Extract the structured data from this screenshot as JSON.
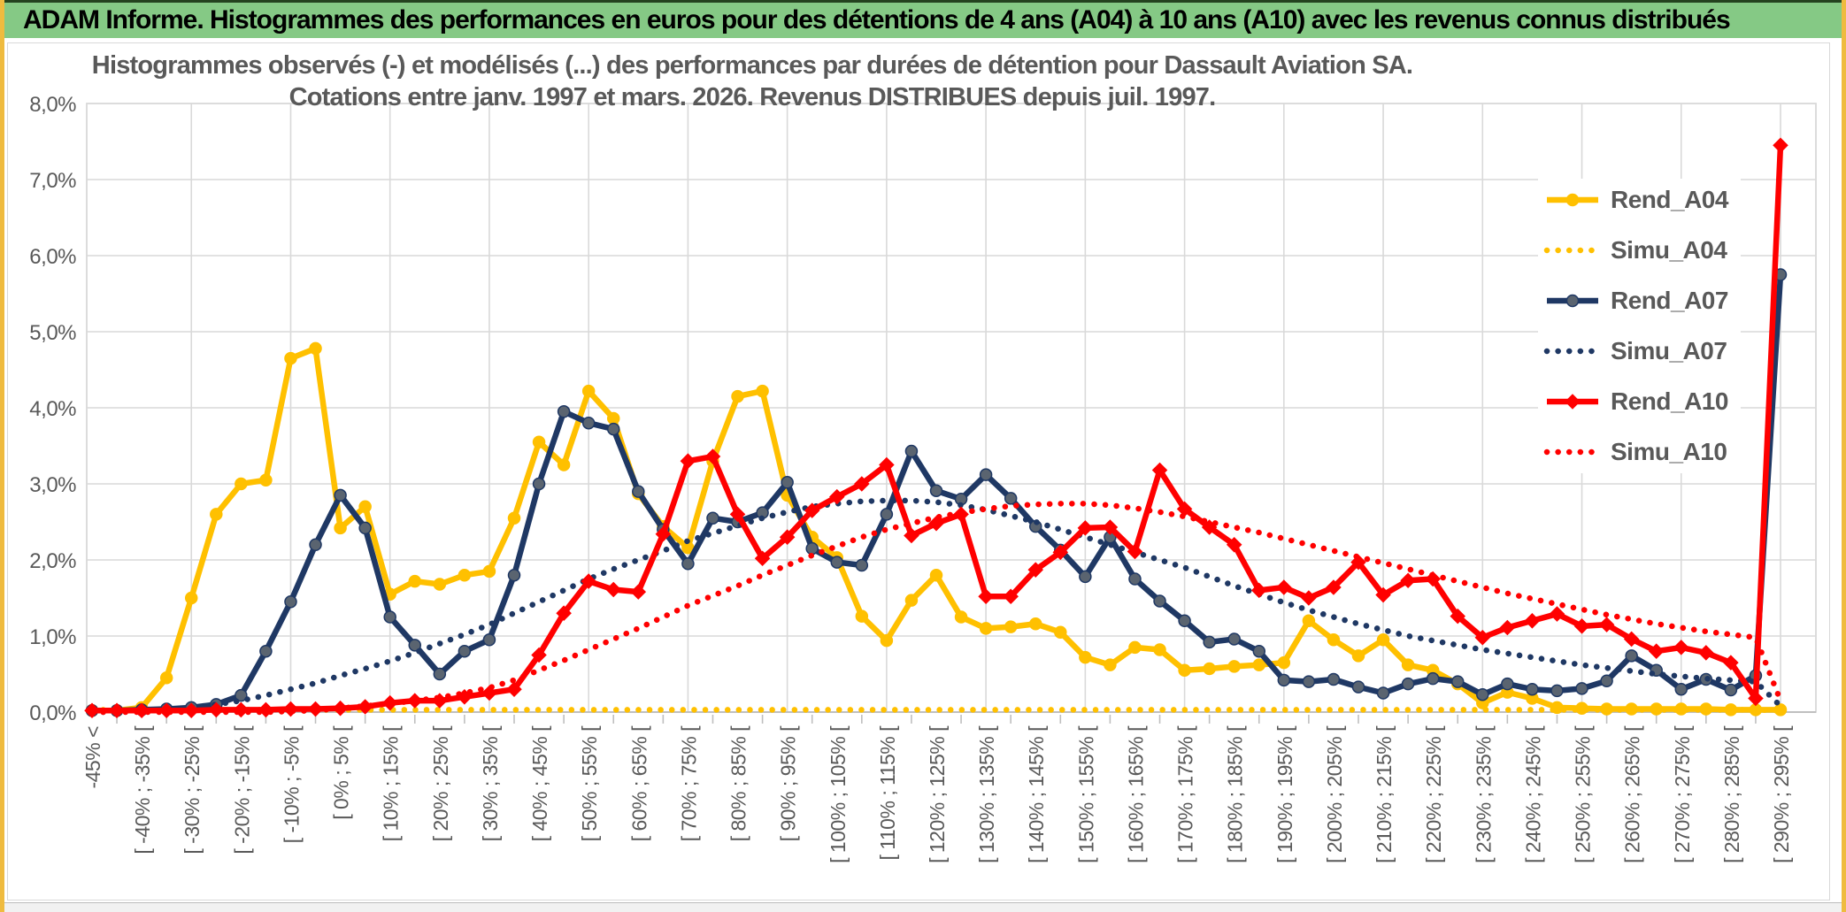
{
  "window": {
    "title": "ADAM Informe. Histogrammes des performances en euros pour des détentions de 4 ans (A04) à 10 ans (A10) avec les revenus connus distribués"
  },
  "chart": {
    "title_line1": "Histogrammes observés (-) et modélisés (...) des performances par durées de détention pour Dassault Aviation SA.",
    "title_line2": "Cotations entre janv. 1997 et mars. 2026. Revenus DISTRIBUES depuis juil. 1997."
  },
  "colors": {
    "gold": "#FFC000",
    "navy": "#1F3864",
    "navy_marker_fill": "#5A6470",
    "red": "#FF0000",
    "grid": "#D9D9D9",
    "axis": "#BFBFBF",
    "text_gray": "#595959",
    "header_green": "#85C985",
    "edge_gold": "#EFBB3F"
  },
  "chart_data": {
    "type": "line",
    "title": "Histogrammes observés (-) et modélisés (...) des performances par durées de détention pour Dassault Aviation SA.",
    "subtitle": "Cotations entre janv. 1997 et mars. 2026. Revenus DISTRIBUES depuis juil. 1997.",
    "ylim": [
      0,
      8
    ],
    "grid": true,
    "legend_position": "top-right",
    "points_per_series": 69,
    "x_label_every": 2,
    "y_labels": [
      "0,0%",
      "1,0%",
      "2,0%",
      "3,0%",
      "4,0%",
      "5,0%",
      "6,0%",
      "7,0%",
      "8,0%"
    ],
    "x_labels": [
      "-45% <",
      "[ -40% ; -35% [",
      "[ -30% ; -25% [",
      "[ -20% ; -15% [",
      "[ -10% ; -5% [",
      "[ 0% ; 5% [",
      "[ 10% ; 15% [",
      "[ 20% ; 25% [",
      "[ 30% ; 35% [",
      "[ 40% ; 45% [",
      "[ 50% ; 55% [",
      "[ 60% ; 65% [",
      "[ 70% ; 75% [",
      "[ 80% ; 85% [",
      "[ 90% ; 95% [",
      "[ 100% ; 105% [",
      "[ 110% ; 115% [",
      "[ 120% ; 125% [",
      "[ 130% ; 135% [",
      "[ 140% ; 145% [",
      "[ 150% ; 155% [",
      "[ 160% ; 165% [",
      "[ 170% ; 175% [",
      "[ 180% ; 185% [",
      "[ 190% ; 195% [",
      "[ 200% ; 205% [",
      "[ 210% ; 215% [",
      "[ 220% ; 225% [",
      "[ 230% ; 235% [",
      "[ 240% ; 245% [",
      "[ 250% ; 255% [",
      "[ 260% ; 265% [",
      "[ 270% ; 275% [",
      "[ 280% ; 285% [",
      "[ 290% ; 295% ["
    ],
    "series": [
      {
        "name": "Rend_A04",
        "color": "#FFC000",
        "style": "solid",
        "marker": "circle",
        "values": [
          0.02,
          0.02,
          0.06,
          0.45,
          1.5,
          2.6,
          3.0,
          3.05,
          4.65,
          4.78,
          2.42,
          2.7,
          1.55,
          1.72,
          1.68,
          1.8,
          1.85,
          2.55,
          3.55,
          3.25,
          4.22,
          3.86,
          2.87,
          2.44,
          2.16,
          3.3,
          4.15,
          4.22,
          2.85,
          2.3,
          2.03,
          1.26,
          0.94,
          1.47,
          1.8,
          1.25,
          1.1,
          1.12,
          1.16,
          1.05,
          0.72,
          0.62,
          0.85,
          0.82,
          0.55,
          0.57,
          0.6,
          0.62,
          0.65,
          1.2,
          0.95,
          0.74,
          0.95,
          0.62,
          0.55,
          0.37,
          0.12,
          0.26,
          0.18,
          0.06,
          0.05,
          0.04,
          0.04,
          0.04,
          0.04,
          0.04,
          0.03,
          0.03,
          0.03
        ]
      },
      {
        "name": "Simu_A04",
        "color": "#FFC000",
        "style": "dotted",
        "marker": "none",
        "values": [
          0.03,
          0.03,
          0.03,
          0.03,
          0.03,
          0.03,
          0.03,
          0.03,
          0.03,
          0.03,
          0.03,
          0.03,
          0.03,
          0.03,
          0.03,
          0.03,
          0.03,
          0.03,
          0.03,
          0.03,
          0.03,
          0.03,
          0.03,
          0.03,
          0.03,
          0.03,
          0.03,
          0.03,
          0.03,
          0.03,
          0.03,
          0.03,
          0.03,
          0.03,
          0.03,
          0.03,
          0.03,
          0.03,
          0.03,
          0.03,
          0.03,
          0.03,
          0.03,
          0.03,
          0.03,
          0.03,
          0.03,
          0.03,
          0.03,
          0.03,
          0.03,
          0.03,
          0.03,
          0.03,
          0.03,
          0.03,
          0.03,
          0.03,
          0.03,
          0.03,
          0.03,
          0.03,
          0.03,
          0.03,
          0.03,
          0.03,
          0.03,
          0.03,
          0.02
        ]
      },
      {
        "name": "Rend_A07",
        "color": "#1F3864",
        "style": "solid",
        "marker": "circle",
        "marker_fill": "#5A6470",
        "values": [
          0.02,
          0.02,
          0.03,
          0.04,
          0.06,
          0.1,
          0.22,
          0.8,
          1.45,
          2.2,
          2.85,
          2.42,
          1.25,
          0.88,
          0.5,
          0.8,
          0.95,
          1.8,
          3.0,
          3.95,
          3.8,
          3.72,
          2.9,
          2.4,
          1.95,
          2.55,
          2.5,
          2.62,
          3.02,
          2.15,
          1.97,
          1.93,
          2.6,
          3.43,
          2.91,
          2.8,
          3.12,
          2.81,
          2.44,
          2.13,
          1.78,
          2.3,
          1.75,
          1.46,
          1.2,
          0.92,
          0.96,
          0.8,
          0.42,
          0.4,
          0.43,
          0.33,
          0.25,
          0.37,
          0.44,
          0.4,
          0.23,
          0.37,
          0.3,
          0.28,
          0.31,
          0.41,
          0.74,
          0.55,
          0.3,
          0.43,
          0.29,
          0.48,
          5.75
        ]
      },
      {
        "name": "Simu_A07",
        "color": "#1F3864",
        "style": "dotted",
        "marker": "none",
        "values": [
          0,
          0,
          0.01,
          0.03,
          0.06,
          0.1,
          0.15,
          0.22,
          0.3,
          0.38,
          0.48,
          0.57,
          0.67,
          0.78,
          0.9,
          1.02,
          1.15,
          1.3,
          1.45,
          1.6,
          1.75,
          1.88,
          2.0,
          2.12,
          2.25,
          2.35,
          2.45,
          2.55,
          2.63,
          2.7,
          2.74,
          2.77,
          2.78,
          2.78,
          2.76,
          2.72,
          2.66,
          2.58,
          2.5,
          2.4,
          2.3,
          2.2,
          2.1,
          2.0,
          1.9,
          1.78,
          1.66,
          1.55,
          1.44,
          1.34,
          1.25,
          1.16,
          1.08,
          1.0,
          0.94,
          0.88,
          0.82,
          0.77,
          0.72,
          0.67,
          0.62,
          0.58,
          0.54,
          0.5,
          0.47,
          0.44,
          0.42,
          0.4,
          0.08
        ]
      },
      {
        "name": "Rend_A10",
        "color": "#FF0000",
        "style": "solid",
        "marker": "diamond",
        "values": [
          0.02,
          0.02,
          0.02,
          0.02,
          0.02,
          0.03,
          0.03,
          0.03,
          0.04,
          0.04,
          0.05,
          0.07,
          0.12,
          0.15,
          0.15,
          0.2,
          0.25,
          0.3,
          0.75,
          1.3,
          1.72,
          1.61,
          1.58,
          2.34,
          3.3,
          3.36,
          2.6,
          2.02,
          2.3,
          2.65,
          2.83,
          3.0,
          3.25,
          2.32,
          2.48,
          2.6,
          1.52,
          1.52,
          1.87,
          2.1,
          2.42,
          2.43,
          2.11,
          3.18,
          2.67,
          2.43,
          2.2,
          1.6,
          1.64,
          1.5,
          1.64,
          1.97,
          1.54,
          1.73,
          1.75,
          1.26,
          0.98,
          1.11,
          1.2,
          1.29,
          1.13,
          1.15,
          0.96,
          0.8,
          0.85,
          0.78,
          0.65,
          0.18,
          7.45
        ]
      },
      {
        "name": "Simu_A10",
        "color": "#FF0000",
        "style": "dotted",
        "marker": "none",
        "values": [
          0,
          0,
          0,
          0,
          0,
          0,
          0,
          0,
          0.01,
          0.02,
          0.05,
          0.08,
          0.11,
          0.15,
          0.19,
          0.25,
          0.32,
          0.42,
          0.55,
          0.68,
          0.82,
          0.96,
          1.1,
          1.25,
          1.4,
          1.53,
          1.66,
          1.8,
          1.93,
          2.06,
          2.18,
          2.3,
          2.4,
          2.48,
          2.56,
          2.62,
          2.67,
          2.71,
          2.73,
          2.74,
          2.74,
          2.72,
          2.68,
          2.63,
          2.57,
          2.5,
          2.43,
          2.36,
          2.28,
          2.2,
          2.12,
          2.04,
          1.96,
          1.88,
          1.8,
          1.72,
          1.64,
          1.56,
          1.49,
          1.42,
          1.35,
          1.28,
          1.22,
          1.16,
          1.11,
          1.06,
          1.02,
          0.98,
          0.15
        ]
      }
    ]
  }
}
